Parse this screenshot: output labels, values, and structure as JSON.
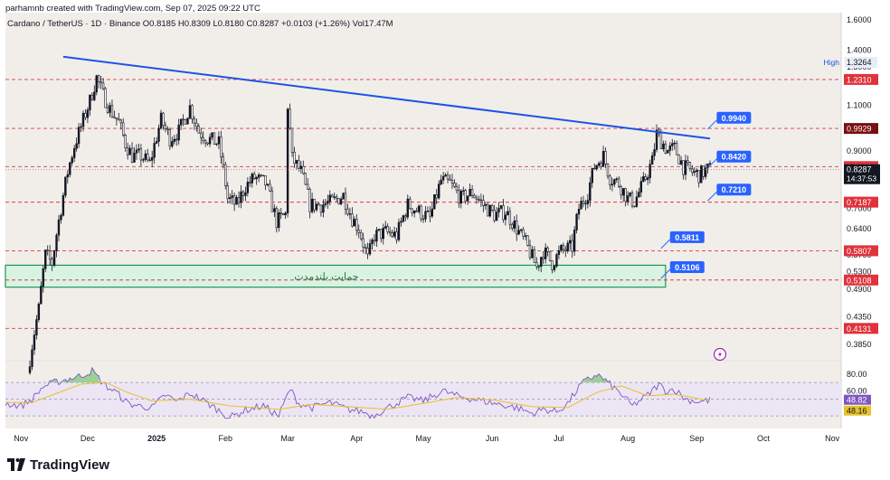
{
  "header": {
    "created_by": "parhamnb created with TradingView.com, Sep 07, 2025 09:22 UTC"
  },
  "legend": {
    "symbol": "Cardano / TetherUS · 1D · Binance",
    "ohlc": "O0.8185  H0.8309  L0.8180  C0.8287  +0.0103 (+1.26%)  Vol17.47M"
  },
  "brand": {
    "name": "TradingView",
    "icon": "tradingview-logo-icon"
  },
  "colors": {
    "bg": "#f1eeea",
    "candle": "#131722",
    "trendline": "#1e53e5",
    "level_line": "#d93b45",
    "label_blue": "#2962ff",
    "label_red": "#e0323b",
    "label_darkred": "#7a1010",
    "support_fill": "#d9f3e3",
    "support_stroke": "#1a9a55",
    "rsi_line": "#7e57c2",
    "rsi_ma": "#e6c229",
    "rsi_band": "#ece5f4"
  },
  "chart_data": [
    {
      "type": "candlestick",
      "title": "Cardano / TetherUS · 1D · Binance",
      "y_scale": "log",
      "ylim": [
        0.36,
        1.65
      ],
      "x_ticks": [
        "Nov",
        "Dec",
        "2025",
        "Feb",
        "Mar",
        "Apr",
        "May",
        "Jun",
        "Jul",
        "Aug",
        "Sep",
        "Oct",
        "Nov"
      ],
      "y_ticks": [
        "1.6000",
        "1.4000",
        "1.3000",
        "1.1000",
        "0.9000",
        "0.8000",
        "0.7000",
        "0.6400",
        "0.5700",
        "0.5300",
        "0.4900",
        "0.4350",
        "0.3850"
      ],
      "high_marker": {
        "label": "High",
        "value": "1.3264"
      },
      "last_price": {
        "value": "0.8287",
        "countdown": "14:37:53"
      },
      "price_path": [
        [
          "2024-11-05",
          0.34
        ],
        [
          "2024-11-10",
          0.45
        ],
        [
          "2024-11-13",
          0.57
        ],
        [
          "2024-11-16",
          0.55
        ],
        [
          "2024-11-20",
          0.7
        ],
        [
          "2024-11-23",
          0.82
        ],
        [
          "2024-11-26",
          0.92
        ],
        [
          "2024-11-29",
          1.0
        ],
        [
          "2024-12-03",
          1.12
        ],
        [
          "2024-12-06",
          1.24
        ],
        [
          "2024-12-09",
          1.15
        ],
        [
          "2024-12-12",
          1.08
        ],
        [
          "2024-12-16",
          1.02
        ],
        [
          "2024-12-19",
          0.93
        ],
        [
          "2024-12-22",
          0.88
        ],
        [
          "2024-12-26",
          0.88
        ],
        [
          "2024-12-30",
          0.85
        ],
        [
          "2025-01-04",
          1.03
        ],
        [
          "2025-01-08",
          0.95
        ],
        [
          "2025-01-12",
          0.98
        ],
        [
          "2025-01-17",
          1.09
        ],
        [
          "2025-01-21",
          0.98
        ],
        [
          "2025-01-25",
          0.95
        ],
        [
          "2025-01-30",
          0.93
        ],
        [
          "2025-02-03",
          0.73
        ],
        [
          "2025-02-07",
          0.71
        ],
        [
          "2025-02-11",
          0.77
        ],
        [
          "2025-02-15",
          0.8
        ],
        [
          "2025-02-20",
          0.78
        ],
        [
          "2025-02-25",
          0.66
        ],
        [
          "2025-03-01",
          0.68
        ],
        [
          "2025-03-02",
          1.1
        ],
        [
          "2025-03-04",
          0.87
        ],
        [
          "2025-03-08",
          0.82
        ],
        [
          "2025-03-12",
          0.71
        ],
        [
          "2025-03-17",
          0.71
        ],
        [
          "2025-03-22",
          0.72
        ],
        [
          "2025-03-27",
          0.74
        ],
        [
          "2025-03-31",
          0.67
        ],
        [
          "2025-04-03",
          0.64
        ],
        [
          "2025-04-07",
          0.56
        ],
        [
          "2025-04-10",
          0.62
        ],
        [
          "2025-04-15",
          0.63
        ],
        [
          "2025-04-20",
          0.62
        ],
        [
          "2025-04-25",
          0.71
        ],
        [
          "2025-04-30",
          0.69
        ],
        [
          "2025-05-05",
          0.67
        ],
        [
          "2025-05-10",
          0.79
        ],
        [
          "2025-05-14",
          0.78
        ],
        [
          "2025-05-19",
          0.73
        ],
        [
          "2025-05-24",
          0.75
        ],
        [
          "2025-05-29",
          0.71
        ],
        [
          "2025-06-03",
          0.68
        ],
        [
          "2025-06-08",
          0.69
        ],
        [
          "2025-06-13",
          0.64
        ],
        [
          "2025-06-17",
          0.6
        ],
        [
          "2025-06-22",
          0.54
        ],
        [
          "2025-06-25",
          0.58
        ],
        [
          "2025-06-29",
          0.55
        ],
        [
          "2025-07-03",
          0.58
        ],
        [
          "2025-07-08",
          0.59
        ],
        [
          "2025-07-11",
          0.7
        ],
        [
          "2025-07-15",
          0.75
        ],
        [
          "2025-07-18",
          0.84
        ],
        [
          "2025-07-22",
          0.88
        ],
        [
          "2025-07-25",
          0.8
        ],
        [
          "2025-07-29",
          0.78
        ],
        [
          "2025-08-02",
          0.73
        ],
        [
          "2025-08-05",
          0.72
        ],
        [
          "2025-08-09",
          0.78
        ],
        [
          "2025-08-13",
          0.86
        ],
        [
          "2025-08-15",
          0.97
        ],
        [
          "2025-08-17",
          0.94
        ],
        [
          "2025-08-20",
          0.9
        ],
        [
          "2025-08-23",
          0.91
        ],
        [
          "2025-08-27",
          0.84
        ],
        [
          "2025-08-31",
          0.82
        ],
        [
          "2025-09-03",
          0.81
        ],
        [
          "2025-09-07",
          0.83
        ]
      ],
      "horizontal_levels": [
        {
          "value": 1.231,
          "label": "1.2310",
          "color": "#e0323b"
        },
        {
          "value": 0.9929,
          "label": "0.9929",
          "color": "#7a1010"
        },
        {
          "value": 0.84,
          "label": "0.8400",
          "color": "#e0323b"
        },
        {
          "value": 0.7187,
          "label": "0.7187",
          "color": "#e0323b"
        },
        {
          "value": 0.5807,
          "label": "0.5807",
          "color": "#e0323b"
        },
        {
          "value": 0.5108,
          "label": "0.5108",
          "color": "#e0323b"
        },
        {
          "value": 0.4131,
          "label": "0.4131",
          "color": "#e0323b"
        }
      ],
      "trendline": {
        "from": [
          "2024-11-20",
          1.36
        ],
        "to": [
          "2025-09-07",
          0.95
        ]
      },
      "support_zone": {
        "label": "حمایت بلندمدت",
        "from": "2024-10-25",
        "to": "2025-08-18",
        "low": 0.495,
        "high": 0.545
      },
      "annotations": [
        {
          "label": "0.9940",
          "date": "2025-09-10",
          "value": 1.055
        },
        {
          "label": "0.8420",
          "date": "2025-09-10",
          "value": 0.89
        },
        {
          "label": "0.7210",
          "date": "2025-09-10",
          "value": 0.77
        },
        {
          "label": "0.5811",
          "date": "2025-08-20",
          "value": 0.625
        },
        {
          "label": "0.5106",
          "date": "2025-08-20",
          "value": 0.548
        }
      ]
    },
    {
      "type": "line",
      "series_label": "RSI",
      "ylim": [
        15,
        95
      ],
      "y_ticks": [
        "80.00",
        "60.00"
      ],
      "upper_band": 70,
      "lower_band": 30,
      "rsi_value": "48.82",
      "ma_value": "48.16",
      "rsi_path": [
        [
          "2024-10-25",
          45
        ],
        [
          "2024-11-01",
          42
        ],
        [
          "2024-11-06",
          50
        ],
        [
          "2024-11-11",
          65
        ],
        [
          "2024-11-16",
          70
        ],
        [
          "2024-11-22",
          74
        ],
        [
          "2024-11-28",
          78
        ],
        [
          "2024-12-03",
          84
        ],
        [
          "2024-12-09",
          66
        ],
        [
          "2024-12-14",
          58
        ],
        [
          "2024-12-19",
          45
        ],
        [
          "2024-12-24",
          42
        ],
        [
          "2024-12-30",
          40
        ],
        [
          "2025-01-05",
          55
        ],
        [
          "2025-01-10",
          47
        ],
        [
          "2025-01-16",
          57
        ],
        [
          "2025-01-21",
          50
        ],
        [
          "2025-01-27",
          40
        ],
        [
          "2025-02-03",
          28
        ],
        [
          "2025-02-10",
          37
        ],
        [
          "2025-02-18",
          42
        ],
        [
          "2025-02-25",
          30
        ],
        [
          "2025-03-02",
          62
        ],
        [
          "2025-03-06",
          45
        ],
        [
          "2025-03-12",
          40
        ],
        [
          "2025-03-20",
          46
        ],
        [
          "2025-03-28",
          38
        ],
        [
          "2025-04-04",
          35
        ],
        [
          "2025-04-08",
          30
        ],
        [
          "2025-04-15",
          40
        ],
        [
          "2025-04-24",
          52
        ],
        [
          "2025-05-01",
          48
        ],
        [
          "2025-05-10",
          60
        ],
        [
          "2025-05-16",
          54
        ],
        [
          "2025-05-24",
          50
        ],
        [
          "2025-06-02",
          45
        ],
        [
          "2025-06-12",
          40
        ],
        [
          "2025-06-19",
          33
        ],
        [
          "2025-06-24",
          38
        ],
        [
          "2025-06-30",
          35
        ],
        [
          "2025-07-05",
          45
        ],
        [
          "2025-07-11",
          68
        ],
        [
          "2025-07-18",
          80
        ],
        [
          "2025-07-23",
          70
        ],
        [
          "2025-07-29",
          56
        ],
        [
          "2025-08-03",
          42
        ],
        [
          "2025-08-10",
          55
        ],
        [
          "2025-08-15",
          68
        ],
        [
          "2025-08-18",
          60
        ],
        [
          "2025-08-22",
          62
        ],
        [
          "2025-08-27",
          50
        ],
        [
          "2025-09-02",
          47
        ],
        [
          "2025-09-07",
          48.82
        ]
      ],
      "ma_path": [
        [
          "2024-10-25",
          46
        ],
        [
          "2024-11-06",
          46
        ],
        [
          "2024-11-16",
          56
        ],
        [
          "2024-11-28",
          68
        ],
        [
          "2024-12-09",
          70
        ],
        [
          "2024-12-19",
          58
        ],
        [
          "2024-12-30",
          48
        ],
        [
          "2025-01-16",
          50
        ],
        [
          "2025-02-03",
          42
        ],
        [
          "2025-02-25",
          38
        ],
        [
          "2025-03-12",
          44
        ],
        [
          "2025-03-28",
          41
        ],
        [
          "2025-04-15",
          38
        ],
        [
          "2025-05-01",
          45
        ],
        [
          "2025-05-16",
          52
        ],
        [
          "2025-06-02",
          49
        ],
        [
          "2025-06-19",
          41
        ],
        [
          "2025-07-05",
          40
        ],
        [
          "2025-07-18",
          58
        ],
        [
          "2025-07-29",
          66
        ],
        [
          "2025-08-10",
          54
        ],
        [
          "2025-08-22",
          56
        ],
        [
          "2025-09-07",
          48.16
        ]
      ]
    }
  ]
}
